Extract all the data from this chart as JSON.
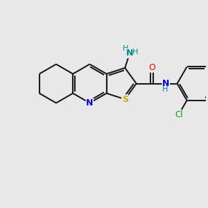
{
  "background_color": "#e8e8e8",
  "bond_color": "#1a1a1a",
  "N_blue": "#0000ff",
  "N_teal": "#008b8b",
  "S_yellow": "#ccaa00",
  "O_red": "#ff0000",
  "Cl_green": "#00aa00",
  "lw": 1.5,
  "fs": 8.5,
  "figsize": [
    3.0,
    3.0
  ],
  "dpi": 100,
  "xlim": [
    0,
    10
  ],
  "ylim": [
    0,
    10
  ]
}
